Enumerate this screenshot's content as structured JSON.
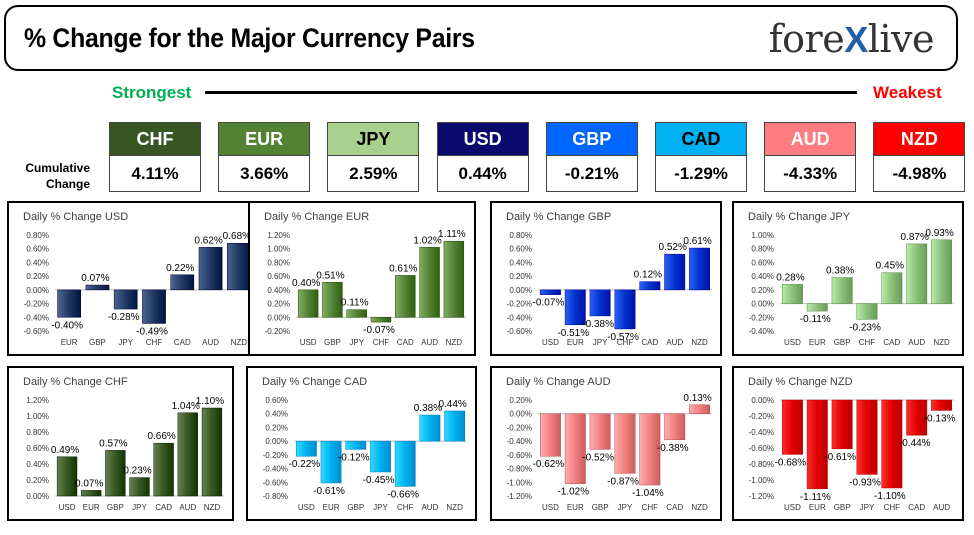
{
  "header": {
    "title": "% Change for the Major Currency Pairs",
    "logo_left": "fore",
    "logo_x": "X",
    "logo_right": "live"
  },
  "legend": {
    "strongest": "Strongest",
    "weakest": "Weakest"
  },
  "cumulative_label_1": "Cumulative",
  "cumulative_label_2": "Change",
  "ranking": [
    {
      "code": "CHF",
      "pct": "4.11%",
      "color": "#375623",
      "text": "#ffffff"
    },
    {
      "code": "EUR",
      "pct": "3.66%",
      "color": "#548235",
      "text": "#ffffff"
    },
    {
      "code": "JPY",
      "pct": "2.59%",
      "color": "#a9d18e",
      "text": "#000000"
    },
    {
      "code": "USD",
      "pct": "0.44%",
      "color": "#0a0a6e",
      "text": "#ffffff"
    },
    {
      "code": "GBP",
      "pct": "-0.21%",
      "color": "#0066ff",
      "text": "#ffffff"
    },
    {
      "code": "CAD",
      "pct": "-1.29%",
      "color": "#00b0f0",
      "text": "#000000"
    },
    {
      "code": "AUD",
      "pct": "-4.33%",
      "color": "#ff7c80",
      "text": "#ffffff"
    },
    {
      "code": "NZD",
      "pct": "-4.98%",
      "color": "#ff0000",
      "text": "#ffffff"
    }
  ],
  "chart_data": [
    {
      "type": "bar",
      "title": "Daily % Change USD",
      "categories": [
        "EUR",
        "GBP",
        "JPY",
        "CHF",
        "CAD",
        "AUD",
        "NZD"
      ],
      "values": [
        -0.4,
        0.07,
        -0.28,
        -0.49,
        0.22,
        0.62,
        0.68
      ],
      "labels": [
        "-0.40%",
        "0.07%",
        "-0.28%",
        "-0.49%",
        "0.22%",
        "0.62%",
        "0.68%"
      ],
      "yticks": [
        "0.80%",
        "0.60%",
        "0.40%",
        "0.20%",
        "0.00%",
        "-0.20%",
        "-0.40%",
        "-0.60%"
      ],
      "ylim": [
        -0.6,
        0.8
      ],
      "step": 0.2,
      "pos_color": "#1f3864",
      "neg_color": "#1f3864"
    },
    {
      "type": "bar",
      "title": "Daily % Change EUR",
      "categories": [
        "USD",
        "GBP",
        "JPY",
        "CHF",
        "CAD",
        "AUD",
        "NZD"
      ],
      "values": [
        0.4,
        0.51,
        0.11,
        -0.07,
        0.61,
        1.02,
        1.11
      ],
      "labels": [
        "0.40%",
        "0.51%",
        "0.11%",
        "-0.07%",
        "0.61%",
        "1.02%",
        "1.11%"
      ],
      "yticks": [
        "1.20%",
        "1.00%",
        "0.80%",
        "0.60%",
        "0.40%",
        "0.20%",
        "0.00%",
        "-0.20%"
      ],
      "ylim": [
        -0.2,
        1.2
      ],
      "step": 0.2,
      "pos_color": "#548235",
      "neg_color": "#548235"
    },
    {
      "type": "bar",
      "title": "Daily % Change GBP",
      "categories": [
        "USD",
        "EUR",
        "JPY",
        "CHF",
        "CAD",
        "AUD",
        "NZD"
      ],
      "values": [
        -0.07,
        -0.51,
        -0.38,
        -0.57,
        0.12,
        0.52,
        0.61
      ],
      "labels": [
        "-0.07%",
        "-0.51%",
        "-0.38%",
        "-0.57%",
        "0.12%",
        "0.52%",
        "0.61%"
      ],
      "yticks": [
        "0.80%",
        "0.60%",
        "0.40%",
        "0.20%",
        "0.00%",
        "-0.20%",
        "-0.40%",
        "-0.60%"
      ],
      "ylim": [
        -0.6,
        0.8
      ],
      "step": 0.2,
      "pos_color": "#0033cc",
      "neg_color": "#0033cc"
    },
    {
      "type": "bar",
      "title": "Daily % Change JPY",
      "categories": [
        "USD",
        "EUR",
        "GBP",
        "CHF",
        "CAD",
        "AUD",
        "NZD"
      ],
      "values": [
        0.28,
        -0.11,
        0.38,
        -0.23,
        0.45,
        0.87,
        0.93
      ],
      "labels": [
        "0.28%",
        "-0.11%",
        "0.38%",
        "-0.23%",
        "0.45%",
        "0.87%",
        "0.93%"
      ],
      "yticks": [
        "1.00%",
        "0.80%",
        "0.60%",
        "0.40%",
        "0.20%",
        "0.00%",
        "-0.20%",
        "-0.40%"
      ],
      "ylim": [
        -0.4,
        1.0
      ],
      "step": 0.2,
      "pos_color": "#8cc07a",
      "neg_color": "#8cc07a"
    },
    {
      "type": "bar",
      "title": "Daily % Change CHF",
      "categories": [
        "USD",
        "EUR",
        "GBP",
        "JPY",
        "CAD",
        "AUD",
        "NZD"
      ],
      "values": [
        0.49,
        0.07,
        0.57,
        0.23,
        0.66,
        1.04,
        1.1
      ],
      "labels": [
        "0.49%",
        "0.07%",
        "0.57%",
        "0.23%",
        "0.66%",
        "1.04%",
        "1.10%"
      ],
      "yticks": [
        "1.20%",
        "1.00%",
        "0.80%",
        "0.60%",
        "0.40%",
        "0.20%",
        "0.00%"
      ],
      "ylim": [
        0,
        1.2
      ],
      "step": 0.2,
      "pos_color": "#375623",
      "neg_color": "#375623"
    },
    {
      "type": "bar",
      "title": "Daily % Change CAD",
      "categories": [
        "USD",
        "EUR",
        "GBP",
        "JPY",
        "CHF",
        "AUD",
        "NZD"
      ],
      "values": [
        -0.22,
        -0.61,
        -0.12,
        -0.45,
        -0.66,
        0.38,
        0.44
      ],
      "labels": [
        "-0.22%",
        "-0.61%",
        "-0.12%",
        "-0.45%",
        "-0.66%",
        "0.38%",
        "0.44%"
      ],
      "yticks": [
        "0.60%",
        "0.40%",
        "0.20%",
        "0.00%",
        "-0.20%",
        "-0.40%",
        "-0.60%",
        "-0.80%"
      ],
      "ylim": [
        -0.8,
        0.6
      ],
      "step": 0.2,
      "pos_color": "#00b0f0",
      "neg_color": "#00b0f0"
    },
    {
      "type": "bar",
      "title": "Daily % Change AUD",
      "categories": [
        "USD",
        "EUR",
        "GBP",
        "JPY",
        "CHF",
        "CAD",
        "NZD"
      ],
      "values": [
        -0.62,
        -1.02,
        -0.52,
        -0.87,
        -1.04,
        -0.38,
        0.13
      ],
      "labels": [
        "-0.62%",
        "-1.02%",
        "-0.52%",
        "-0.87%",
        "-1.04%",
        "-0.38%",
        "0.13%"
      ],
      "yticks": [
        "0.20%",
        "0.00%",
        "-0.20%",
        "-0.40%",
        "-0.60%",
        "-0.80%",
        "-1.00%",
        "-1.20%"
      ],
      "ylim": [
        -1.2,
        0.2
      ],
      "step": 0.2,
      "pos_color": "#f08080",
      "neg_color": "#f08080"
    },
    {
      "type": "bar",
      "title": "Daily % Change NZD",
      "categories": [
        "USD",
        "EUR",
        "GBP",
        "JPY",
        "CHF",
        "CAD",
        "AUD"
      ],
      "values": [
        -0.68,
        -1.11,
        -0.61,
        -0.93,
        -1.1,
        -0.44,
        -0.13
      ],
      "labels": [
        "-0.68%",
        "-1.11%",
        "-0.61%",
        "-0.93%",
        "-1.10%",
        "-0.44%",
        "-0.13%"
      ],
      "yticks": [
        "0.00%",
        "-0.20%",
        "-0.40%",
        "-0.60%",
        "-0.80%",
        "-1.00%",
        "-1.20%"
      ],
      "ylim": [
        -1.2,
        0
      ],
      "step": 0.2,
      "pos_color": "#e00000",
      "neg_color": "#e00000"
    }
  ]
}
